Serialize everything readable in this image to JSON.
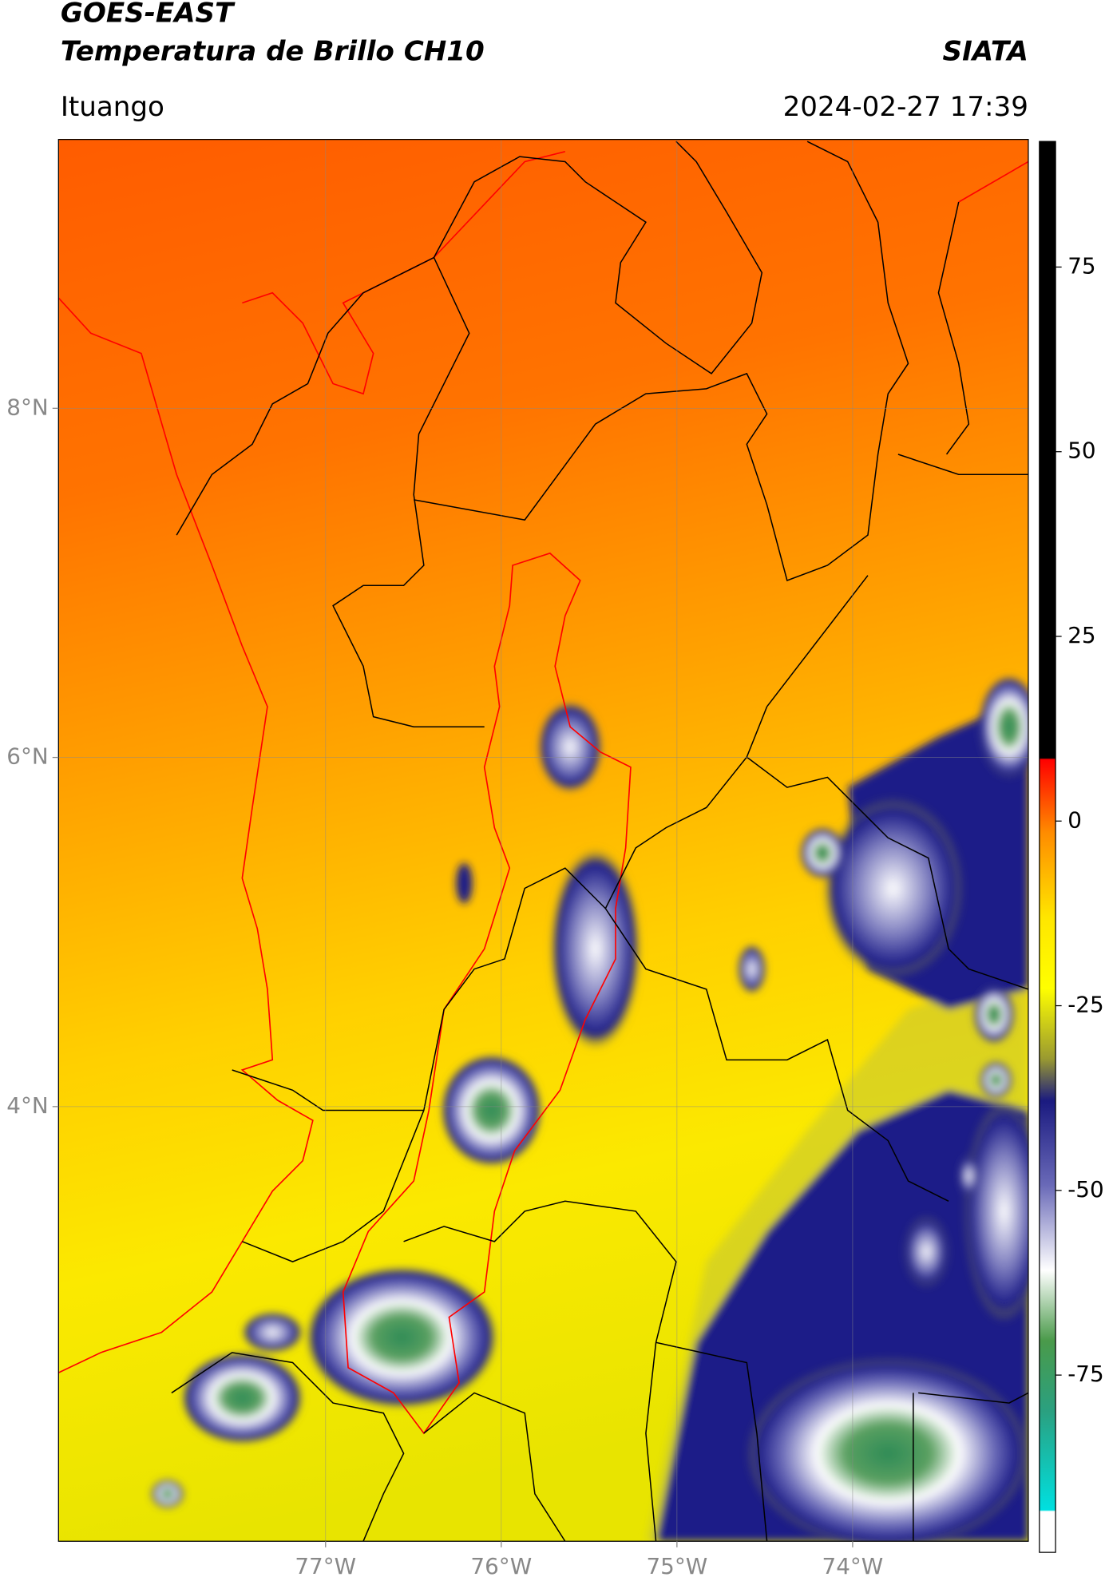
{
  "header": {
    "title": "GOES-EAST",
    "subtitle": "Temperatura de Brillo CH10",
    "brand": "SIATA",
    "location": "Ituango",
    "datetime": "2024-02-27 17:39"
  },
  "map": {
    "xlim": [
      -78.52,
      -73.0
    ],
    "ylim": [
      1.51,
      9.54
    ],
    "xticks": [
      {
        "value": -77,
        "label": "77°W"
      },
      {
        "value": -76,
        "label": "76°W"
      },
      {
        "value": -75,
        "label": "75°W"
      },
      {
        "value": -74,
        "label": "74°W"
      }
    ],
    "yticks": [
      {
        "value": 8,
        "label": "8°N"
      },
      {
        "value": 6,
        "label": "6°N"
      },
      {
        "value": 4,
        "label": "4°N"
      }
    ],
    "grid": true
  },
  "colorbar": {
    "lim": [
      -99,
      92
    ],
    "ticks": [
      75,
      50,
      25,
      0,
      -25,
      -50,
      -75
    ]
  }
}
